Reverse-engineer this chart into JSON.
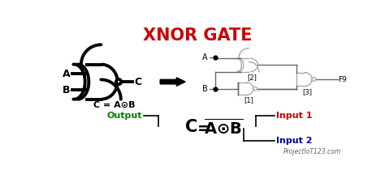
{
  "title": "XNOR GATE",
  "title_color": "#cc0000",
  "title_fontsize": 15,
  "bg_color": "#ffffff",
  "output_label": "Output",
  "input1_label": "Input 1",
  "input2_label": "Input 2",
  "watermark": "ProjectIoT123.com",
  "gate1_label": "[1]",
  "gate2_label": "[2]",
  "gate3_label": "[3]",
  "output_wire_label": "F9",
  "formula_small": "C = A⊙B",
  "label_A": "A",
  "label_B": "B",
  "label_C": "C"
}
